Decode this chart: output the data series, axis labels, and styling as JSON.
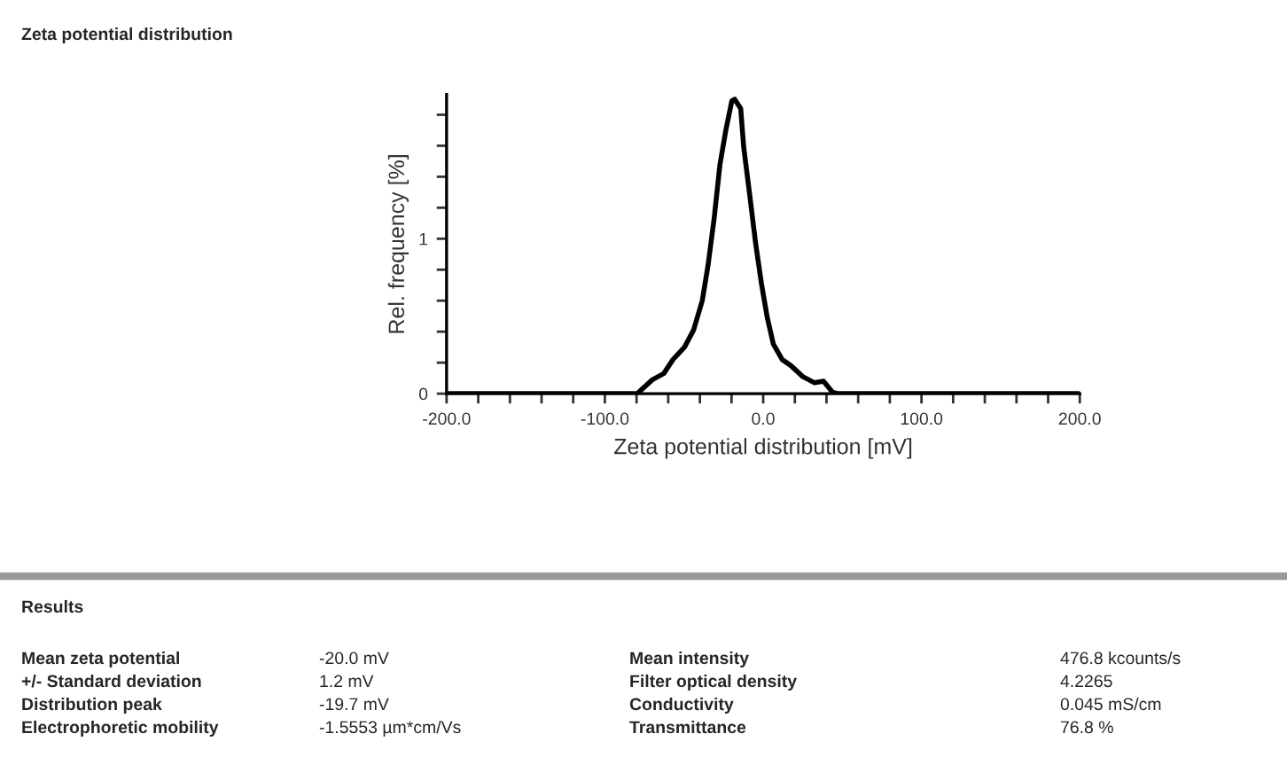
{
  "chart_data": {
    "type": "line",
    "title": "Zeta potential distribution",
    "xlabel": "Zeta potential distribution [mV]",
    "ylabel": "Rel. frequency [%]",
    "x": [
      -200,
      -98.3,
      -79.6,
      -70,
      -62.8,
      -57,
      -49.7,
      -44,
      -38.5,
      -34.8,
      -31,
      -27.3,
      -23.6,
      -19.8,
      -18,
      -14.2,
      -12.3,
      -8.6,
      -4.9,
      -1.1,
      2.6,
      6.4,
      12,
      17.6,
      25,
      32.5,
      38.1,
      43.7,
      47.5,
      200
    ],
    "series": [
      {
        "color": "#000000",
        "values": [
          0,
          0,
          0,
          0.09,
          0.13,
          0.22,
          0.3,
          0.41,
          0.6,
          0.83,
          1.13,
          1.48,
          1.7,
          1.89,
          1.9,
          1.84,
          1.59,
          1.29,
          0.98,
          0.71,
          0.49,
          0.32,
          0.22,
          0.18,
          0.11,
          0.07,
          0.08,
          0.01,
          0,
          0
        ]
      }
    ],
    "xlim": [
      -200,
      200
    ],
    "ylim": [
      0,
      1.93
    ],
    "xticks": [
      {
        "value": -200,
        "label": "-200.0"
      },
      {
        "value": -180,
        "label": null
      },
      {
        "value": -160,
        "label": null
      },
      {
        "value": -140,
        "label": null
      },
      {
        "value": -120,
        "label": null
      },
      {
        "value": -100,
        "label": "-100.0"
      },
      {
        "value": -80,
        "label": null
      },
      {
        "value": -60,
        "label": null
      },
      {
        "value": -40,
        "label": null
      },
      {
        "value": -20,
        "label": null
      },
      {
        "value": 0,
        "label": "0.0"
      },
      {
        "value": 20,
        "label": null
      },
      {
        "value": 40,
        "label": null
      },
      {
        "value": 60,
        "label": null
      },
      {
        "value": 80,
        "label": null
      },
      {
        "value": 100,
        "label": "100.0"
      },
      {
        "value": 120,
        "label": null
      },
      {
        "value": 140,
        "label": null
      },
      {
        "value": 160,
        "label": null
      },
      {
        "value": 180,
        "label": null
      },
      {
        "value": 200,
        "label": "200.0"
      }
    ],
    "yticks": [
      0,
      {
        "value": 0.2,
        "label": null
      },
      {
        "value": 0.4,
        "label": null
      },
      {
        "value": 0.6,
        "label": null
      },
      {
        "value": 0.8,
        "label": null
      },
      1,
      {
        "value": 1.2,
        "label": null
      },
      {
        "value": 1.4,
        "label": null
      },
      {
        "value": 1.6,
        "label": null
      },
      {
        "value": 1.8,
        "label": null
      }
    ],
    "marker": "none",
    "line_style": "solid",
    "annotations": [
      "Results",
      "Mean zeta potential",
      "-20.0 mV",
      "+/- Standard deviation",
      "1.2 mV",
      "Distribution peak",
      "-19.7 mV",
      "Electrophoretic mobility",
      "-1.5553 µm*cm/Vs",
      "Mean intensity",
      "476.8 kcounts/s",
      "Filter optical density",
      "4.2265",
      "Conductivity",
      "0.045 mS/cm",
      "Transmittance",
      "76.8 %"
    ]
  }
}
